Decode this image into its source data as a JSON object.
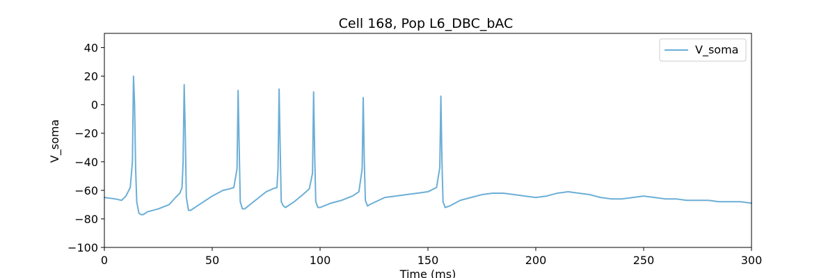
{
  "chart_data": {
    "type": "line",
    "title": "Cell 168, Pop L6_DBC_bAC",
    "xlabel": "Time (ms)",
    "ylabel": "V_soma",
    "xlim": [
      0,
      300
    ],
    "ylim": [
      -100,
      50
    ],
    "xticks": [
      0,
      50,
      100,
      150,
      200,
      250,
      300
    ],
    "yticks": [
      -100,
      -80,
      -60,
      -40,
      -20,
      0,
      20,
      40
    ],
    "grid": false,
    "legend": "top-right",
    "series": [
      {
        "name": "V_soma",
        "color": "#6baed6",
        "x": [
          0,
          5,
          8,
          10,
          12,
          13,
          13.5,
          14,
          14.5,
          15,
          16,
          17,
          18,
          20,
          25,
          30,
          33,
          35,
          36,
          36.5,
          37,
          37.5,
          38,
          39,
          40,
          45,
          50,
          55,
          58,
          60,
          61.5,
          62,
          62.5,
          63,
          64,
          65,
          70,
          75,
          78,
          80,
          80.5,
          81,
          81.5,
          82,
          83,
          84,
          88,
          92,
          95,
          96.5,
          97,
          97.5,
          98,
          99,
          100,
          105,
          110,
          115,
          118,
          119.5,
          120,
          120.5,
          121,
          122,
          123,
          130,
          135,
          140,
          145,
          150,
          154,
          155.5,
          156,
          156.5,
          157,
          158,
          160,
          165,
          170,
          175,
          180,
          185,
          190,
          195,
          200,
          205,
          210,
          215,
          220,
          225,
          230,
          235,
          240,
          245,
          250,
          255,
          260,
          265,
          270,
          275,
          280,
          285,
          290,
          295,
          300
        ],
        "y": [
          -65,
          -66,
          -67,
          -64,
          -58,
          -40,
          20,
          0,
          -45,
          -68,
          -76,
          -77,
          -77,
          -75,
          -73,
          -70,
          -65,
          -62,
          -58,
          -40,
          14,
          -20,
          -65,
          -74,
          -74,
          -69,
          -64,
          -60,
          -59,
          -58,
          -45,
          10,
          -30,
          -68,
          -73,
          -73,
          -67,
          -61,
          -59,
          -58,
          -45,
          11,
          -30,
          -68,
          -71,
          -72,
          -68,
          -63,
          -59,
          -48,
          9,
          -35,
          -68,
          -72,
          -72,
          -69,
          -67,
          -64,
          -61,
          -45,
          5,
          -40,
          -67,
          -71,
          -70,
          -65,
          -64,
          -63,
          -62,
          -61,
          -58,
          -44,
          6,
          -40,
          -68,
          -72,
          -71,
          -67,
          -65,
          -63,
          -62,
          -62,
          -63,
          -64,
          -65,
          -64,
          -62,
          -61,
          -62,
          -63,
          -65,
          -66,
          -66,
          -65,
          -64,
          -65,
          -66,
          -66,
          -67,
          -67,
          -67,
          -68,
          -68,
          -68,
          -69
        ]
      }
    ]
  }
}
